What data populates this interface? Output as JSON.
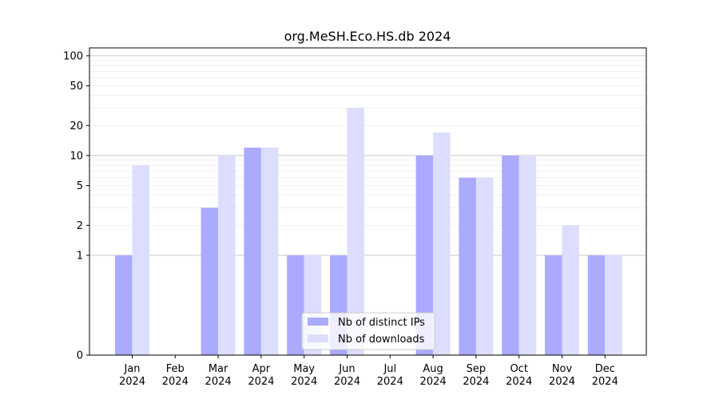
{
  "chart_data": {
    "type": "bar",
    "title": "org.MeSH.Eco.HS.db 2024",
    "xlabel": "",
    "ylabel": "",
    "yscale": "symlog",
    "ylim": [
      0,
      120
    ],
    "y_ticks": [
      0,
      1,
      2,
      5,
      10,
      20,
      50,
      100
    ],
    "y_tick_labels": [
      "0",
      "1",
      "2",
      "5",
      "10",
      "20",
      "50",
      "100"
    ],
    "categories": [
      "Jan\n2024",
      "Feb\n2024",
      "Mar\n2024",
      "Apr\n2024",
      "May\n2024",
      "Jun\n2024",
      "Jul\n2024",
      "Aug\n2024",
      "Sep\n2024",
      "Oct\n2024",
      "Nov\n2024",
      "Dec\n2024"
    ],
    "series": [
      {
        "name": "Nb of distinct IPs",
        "color": "#aaaaff",
        "values": [
          1,
          0,
          3,
          12,
          1,
          1,
          0,
          10,
          6,
          10,
          1,
          1
        ]
      },
      {
        "name": "Nb of downloads",
        "color": "#ddddff",
        "values": [
          8,
          0,
          10,
          12,
          1,
          30,
          0,
          17,
          6,
          10,
          2,
          1
        ]
      }
    ],
    "grid": "horizontal",
    "legend_position": "lower-center"
  }
}
